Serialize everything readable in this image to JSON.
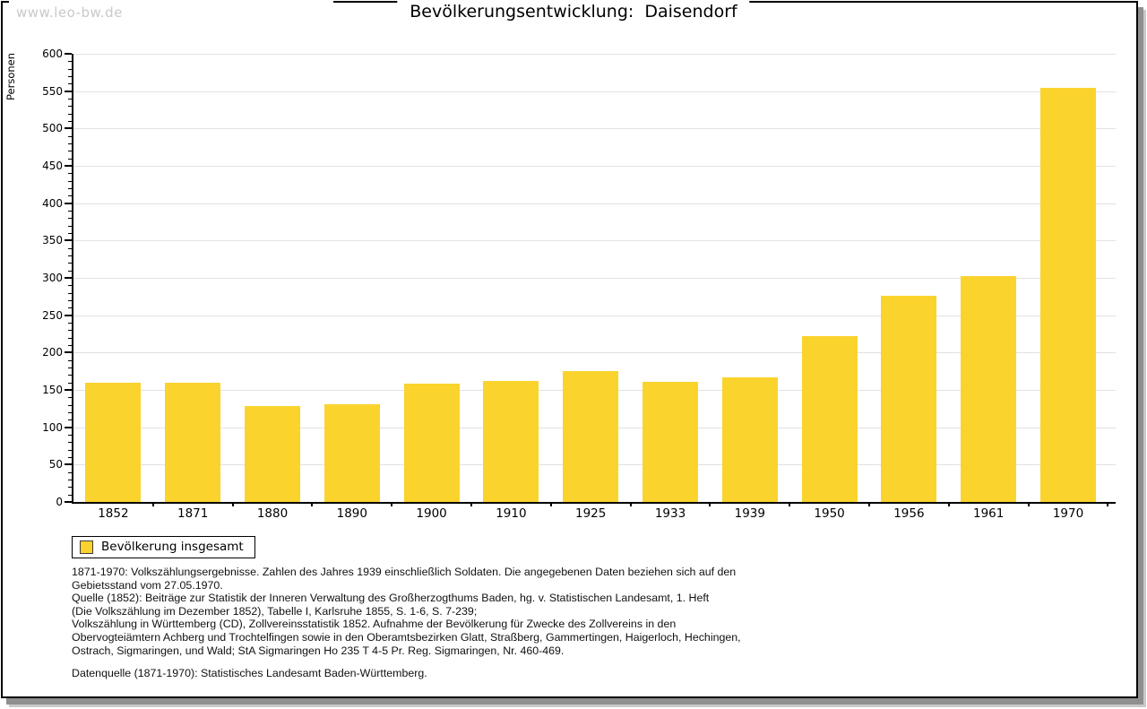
{
  "watermark": "www.leo-bw.de",
  "title": "Bevölkerungsentwicklung:  Daisendorf",
  "chart_data": {
    "type": "bar",
    "title": "Bevölkerungsentwicklung: Daisendorf",
    "ylabel": "Personen",
    "xlabel": "",
    "categories": [
      "1852",
      "1871",
      "1880",
      "1890",
      "1900",
      "1910",
      "1925",
      "1933",
      "1939",
      "1950",
      "1956",
      "1961",
      "1970"
    ],
    "values": [
      160,
      160,
      129,
      131,
      159,
      162,
      175,
      161,
      167,
      222,
      276,
      302,
      555
    ],
    "ylim": [
      0,
      600
    ],
    "ytick_step": 50,
    "yminor_step": 10,
    "grid": true,
    "legend": {
      "position": "below-left",
      "entries": [
        "Bevölkerung insgesamt"
      ]
    }
  },
  "footer": {
    "block1": "1871-1970: Volkszählungsergebnisse. Zahlen des Jahres 1939 einschließlich Soldaten. Die angegebenen Daten beziehen sich auf den\nGebietsstand vom 27.05.1970.\nQuelle (1852): Beiträge zur Statistik der Inneren Verwaltung des Großherzogthums Baden, hg. v. Statistischen Landesamt, 1. Heft\n(Die Volkszählung im Dezember 1852), Tabelle I, Karlsruhe 1855, S. 1-6, S. 7-239;\nVolkszählung in Württemberg (CD), Zollvereinsstatistik 1852. Aufnahme der Bevölkerung für Zwecke des Zollvereins in den\nObervogteiämtern Achberg und Trochtelfingen sowie in den Oberamtsbezirken Glatt, Straßberg, Gammertingen, Haigerloch, Hechingen,\nOstrach, Sigmaringen, und Wald; StA Sigmaringen Ho 235 T 4-5 Pr. Reg. Sigmaringen, Nr. 460-469.",
    "block2": "Datenquelle (1871-1970): Statistisches Landesamt Baden-Württemberg."
  },
  "colors": {
    "bar_fill": "#FBD32D",
    "swatch_border": "#3f3f3f",
    "grid_line": "#e2e2e2",
    "watermark": "#c9c9c9",
    "axis": "#000000"
  }
}
